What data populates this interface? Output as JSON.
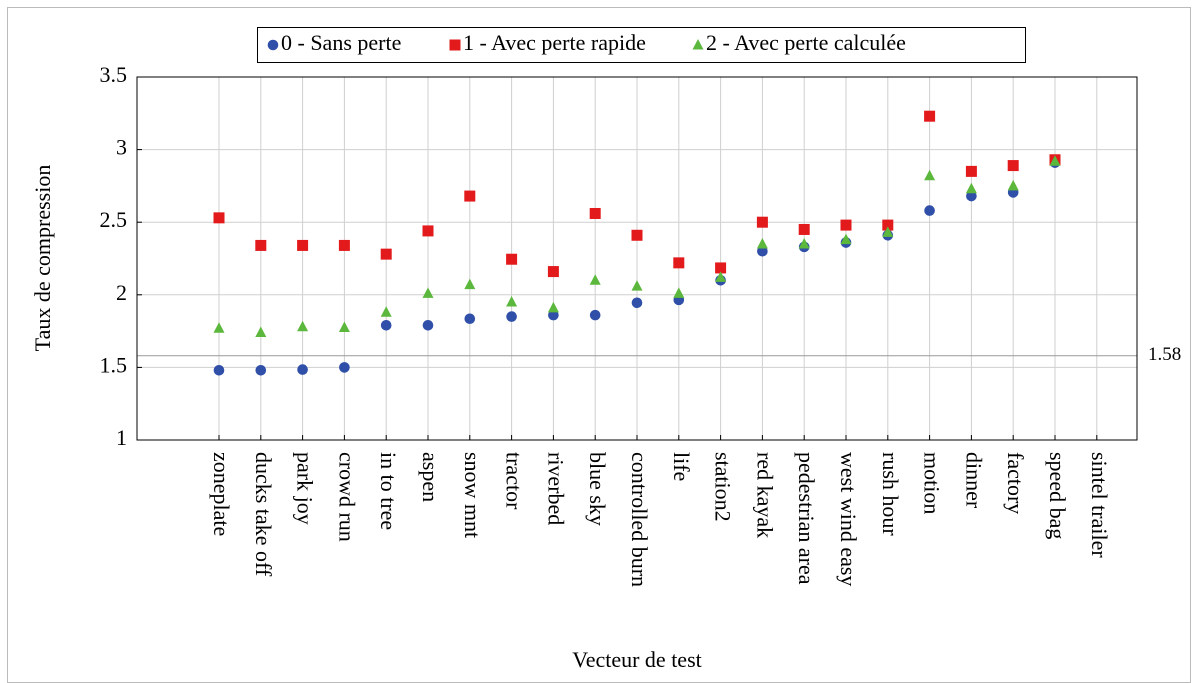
{
  "chart_data": {
    "type": "scatter",
    "x_label": "Vecteur de test",
    "y_label": "Taux de compression",
    "categories": [
      "zoneplate",
      "ducks take off",
      "park joy",
      "crowd run",
      "in to tree",
      "aspen",
      "snow mnt",
      "tractor",
      "riverbed",
      "blue sky",
      "controlled burn",
      "life",
      "station2",
      "red kayak",
      "pedestrian area",
      "west wind easy",
      "rush hour",
      "motion",
      "dinner",
      "factory",
      "speed bag",
      "sintel trailer"
    ],
    "series": [
      {
        "name": "0 - Sans perte",
        "color": "#2f4fa8",
        "marker": "circle",
        "values": [
          1.48,
          1.48,
          1.485,
          1.5,
          1.79,
          1.79,
          1.835,
          1.85,
          1.86,
          1.86,
          1.945,
          1.965,
          2.1,
          2.3,
          2.33,
          2.36,
          2.41,
          2.58,
          2.68,
          2.705,
          2.91,
          null
        ]
      },
      {
        "name": "1 - Avec perte rapide",
        "color": "#e31a1c",
        "marker": "square",
        "values": [
          2.53,
          2.34,
          2.34,
          2.34,
          2.28,
          2.44,
          2.68,
          2.245,
          2.16,
          2.56,
          2.41,
          2.22,
          2.185,
          2.5,
          2.45,
          2.48,
          2.48,
          3.23,
          2.85,
          2.89,
          2.93,
          null
        ]
      },
      {
        "name": "2 - Avec perte calculée",
        "color": "#5cb83c",
        "marker": "triangle",
        "values": [
          1.77,
          1.74,
          1.78,
          1.775,
          1.88,
          2.01,
          2.07,
          1.95,
          1.91,
          2.1,
          2.06,
          2.01,
          2.12,
          2.35,
          2.35,
          2.38,
          2.43,
          2.82,
          2.73,
          2.75,
          2.92,
          null
        ]
      }
    ],
    "ylim": [
      1,
      3.5
    ],
    "yticks": [
      1,
      1.5,
      2,
      2.5,
      3,
      3.5
    ],
    "grid": true,
    "legend": "top",
    "reference_line": {
      "value": 1.58,
      "color": "#999999"
    }
  }
}
